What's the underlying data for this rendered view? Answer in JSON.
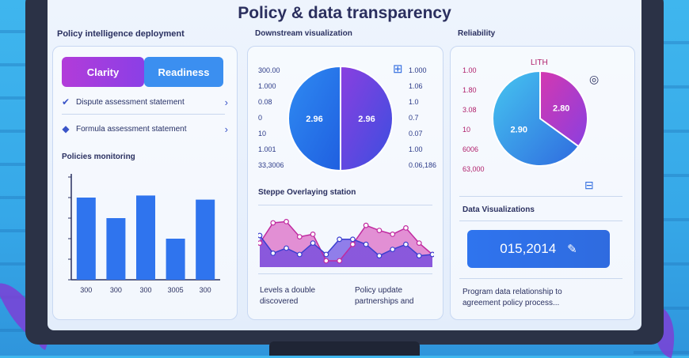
{
  "title": "Policy & data transparency",
  "left_panel": {
    "heading": "Policy intelligence deployment",
    "segments": [
      "Clarity",
      "Readiness"
    ],
    "rows": [
      {
        "label": "Dispute assessment statement"
      },
      {
        "label": "Formula assessment statement"
      }
    ],
    "chart_heading": "Policies monitoring",
    "chart_data": {
      "type": "bar",
      "categories": [
        "300",
        "300",
        "300",
        "3005",
        "300"
      ],
      "values": [
        80,
        60,
        82,
        40,
        78
      ],
      "ylim": [
        0,
        100
      ]
    }
  },
  "middle_panel": {
    "heading": "Downstream visualization",
    "left_labels": [
      "300.00",
      "1.000",
      "0.08",
      "0",
      "10",
      "1.001",
      "33,3006"
    ],
    "right_labels": [
      "1.000",
      "1.06",
      "1.0",
      "0.7",
      "0.07",
      "1.00",
      "0.06,186"
    ],
    "chart_data": {
      "type": "pie",
      "labels": [
        "2.96",
        "2.96"
      ],
      "values": [
        50,
        50
      ]
    },
    "line_heading": "Steppe Overlaying station",
    "line_data": {
      "type": "line",
      "series": [
        {
          "values": [
            38,
            70,
            72,
            48,
            52,
            10,
            10,
            36,
            66,
            58,
            52,
            62,
            38,
            20
          ]
        },
        {
          "values": [
            50,
            22,
            30,
            20,
            38,
            20,
            44,
            44,
            36,
            18,
            28,
            36,
            18,
            20
          ]
        }
      ]
    },
    "bottom_left": [
      "Levels a double",
      "discovered"
    ],
    "bottom_right": [
      "Policy update",
      "partnerships and"
    ]
  },
  "right_panel": {
    "heading": "Reliability",
    "left_labels": [
      "1.00",
      "1.80",
      "3.08",
      "10",
      "6006",
      "63,000"
    ],
    "pie_top_label": "LITH",
    "chart_data": {
      "type": "pie",
      "labels": [
        "2.80",
        "2.90"
      ],
      "values": [
        35,
        65
      ]
    },
    "sub_heading": "Data Visualizations",
    "value": "015,2014",
    "footer_lines": [
      "Program data relationship to",
      "agreement policy process..."
    ]
  },
  "colors": {
    "accent_blue": "#2f74ee",
    "accent_purple": "#8a3fe0",
    "accent_pink": "#d438b0"
  }
}
